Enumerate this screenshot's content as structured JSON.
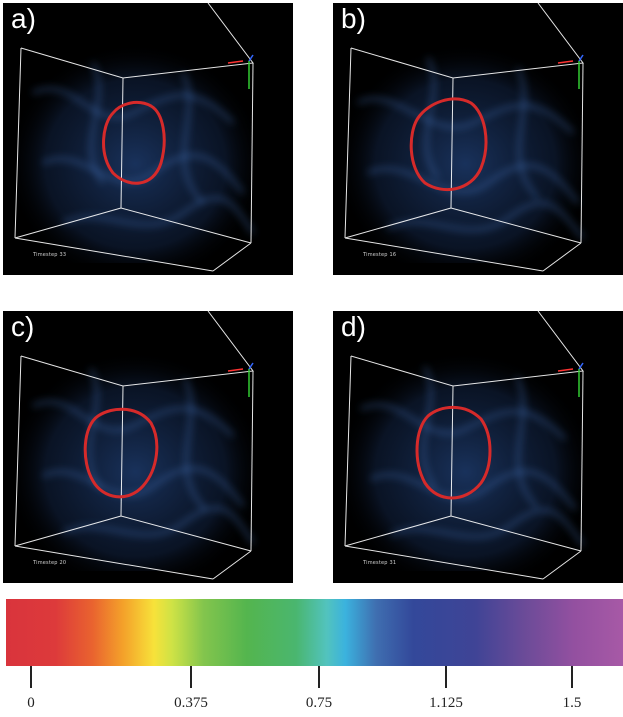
{
  "panels": [
    {
      "label": "a)",
      "timestep": "Timestep 33"
    },
    {
      "label": "b)",
      "timestep": "Timestep 16"
    },
    {
      "label": "c)",
      "timestep": "Timestep 20"
    },
    {
      "label": "d)",
      "timestep": "Timestep 31"
    }
  ],
  "colorbar": {
    "ticks": [
      "0",
      "0.375",
      "0.75",
      "1.125",
      "1.5"
    ]
  },
  "colors": {
    "contour": "#d62a2a",
    "smoke": "#3a6fc4",
    "box_edges": "#ffffff",
    "axis_x": "#ff3333",
    "axis_y": "#33cc33",
    "axis_z": "#3366ff"
  }
}
